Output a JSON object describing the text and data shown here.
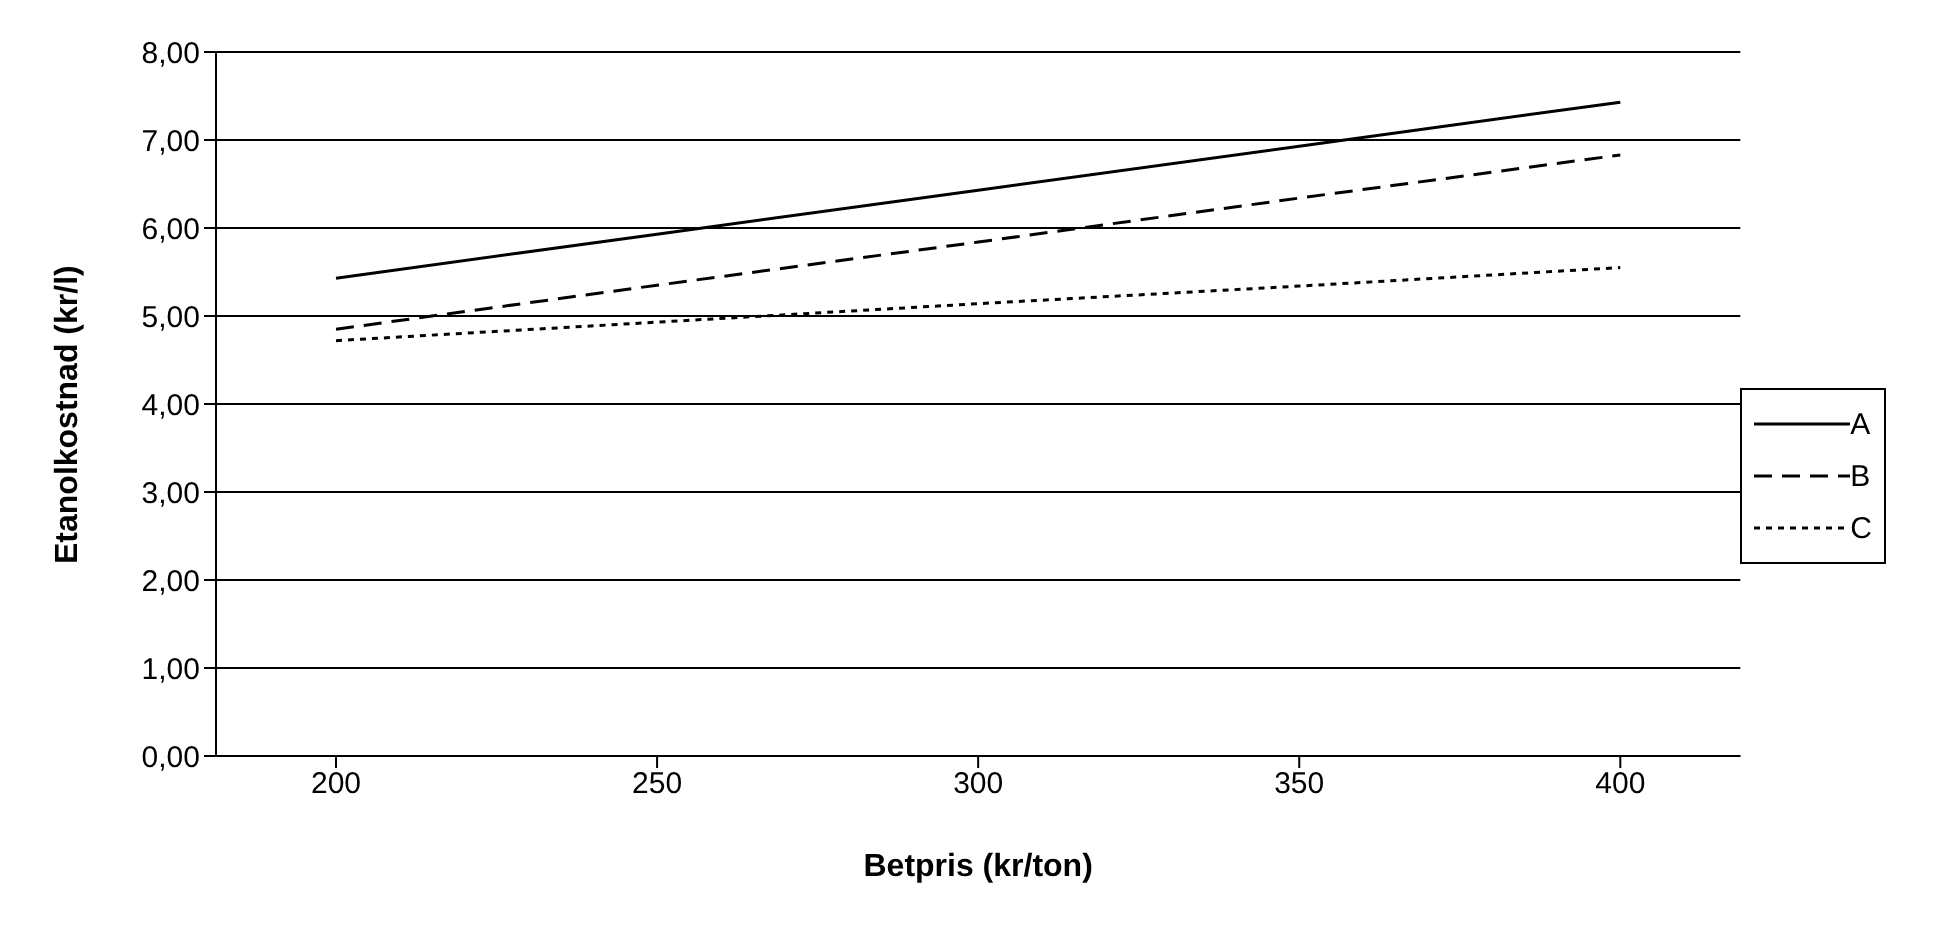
{
  "chart_data": {
    "type": "line",
    "xlabel": "Betpris (kr/ton)",
    "ylabel": "Etanolkostnad (kr/l)",
    "categories": [
      "200",
      "250",
      "300",
      "350",
      "400"
    ],
    "series": [
      {
        "name": "A",
        "color": "#000000",
        "line_style": "solid",
        "values": [
          5.43,
          5.93,
          6.43,
          6.93,
          7.43
        ]
      },
      {
        "name": "B",
        "color": "#000000",
        "line_style": "dashed",
        "values": [
          4.85,
          5.35,
          5.84,
          6.34,
          6.83
        ]
      },
      {
        "name": "C",
        "color": "#000000",
        "line_style": "dotted",
        "values": [
          4.72,
          4.93,
          5.14,
          5.34,
          5.55
        ]
      }
    ],
    "ylim": [
      0,
      8
    ],
    "yticks": [
      {
        "value": 0,
        "label": "0,00"
      },
      {
        "value": 1,
        "label": "1,00"
      },
      {
        "value": 2,
        "label": "2,00"
      },
      {
        "value": 3,
        "label": "3,00"
      },
      {
        "value": 4,
        "label": "4,00"
      },
      {
        "value": 5,
        "label": "5,00"
      },
      {
        "value": 6,
        "label": "6,00"
      },
      {
        "value": 7,
        "label": "7,00"
      },
      {
        "value": 8,
        "label": "8,00"
      }
    ],
    "grid": "y",
    "legend": "right",
    "marker": "none"
  }
}
